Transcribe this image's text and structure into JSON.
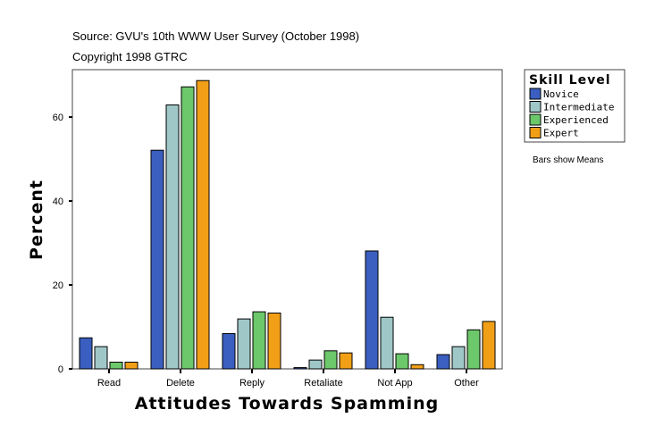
{
  "chart_data": {
    "type": "bar",
    "subtitle_lines": [
      "Source: GVU's 10th WWW User Survey (October 1998)",
      "Copyright 1998 GTRC"
    ],
    "xlabel": "Attitudes Towards Spamming",
    "ylabel": "Percent",
    "ylim": [
      0,
      71.3
    ],
    "yticks": [
      0,
      20,
      40,
      60
    ],
    "grid": false,
    "legend_placement": "right",
    "legend_title": "Skill Level",
    "note": "Bars show Means",
    "categories": [
      "Read",
      "Delete",
      "Reply",
      "Retaliate",
      "Not App",
      "Other"
    ],
    "series": [
      {
        "name": "Novice",
        "color": "#3a5fc0",
        "values": [
          7.4,
          52.1,
          8.4,
          0.3,
          28.1,
          3.4
        ]
      },
      {
        "name": "Intermediate",
        "color": "#9fc7c8",
        "values": [
          5.3,
          62.9,
          11.9,
          2.1,
          12.3,
          5.3
        ]
      },
      {
        "name": "Experienced",
        "color": "#6cc86a",
        "values": [
          1.6,
          67.2,
          13.6,
          4.3,
          3.6,
          9.3
        ]
      },
      {
        "name": "Expert",
        "color": "#f29f18",
        "values": [
          1.6,
          68.7,
          13.3,
          3.8,
          1.0,
          11.3
        ]
      }
    ]
  }
}
